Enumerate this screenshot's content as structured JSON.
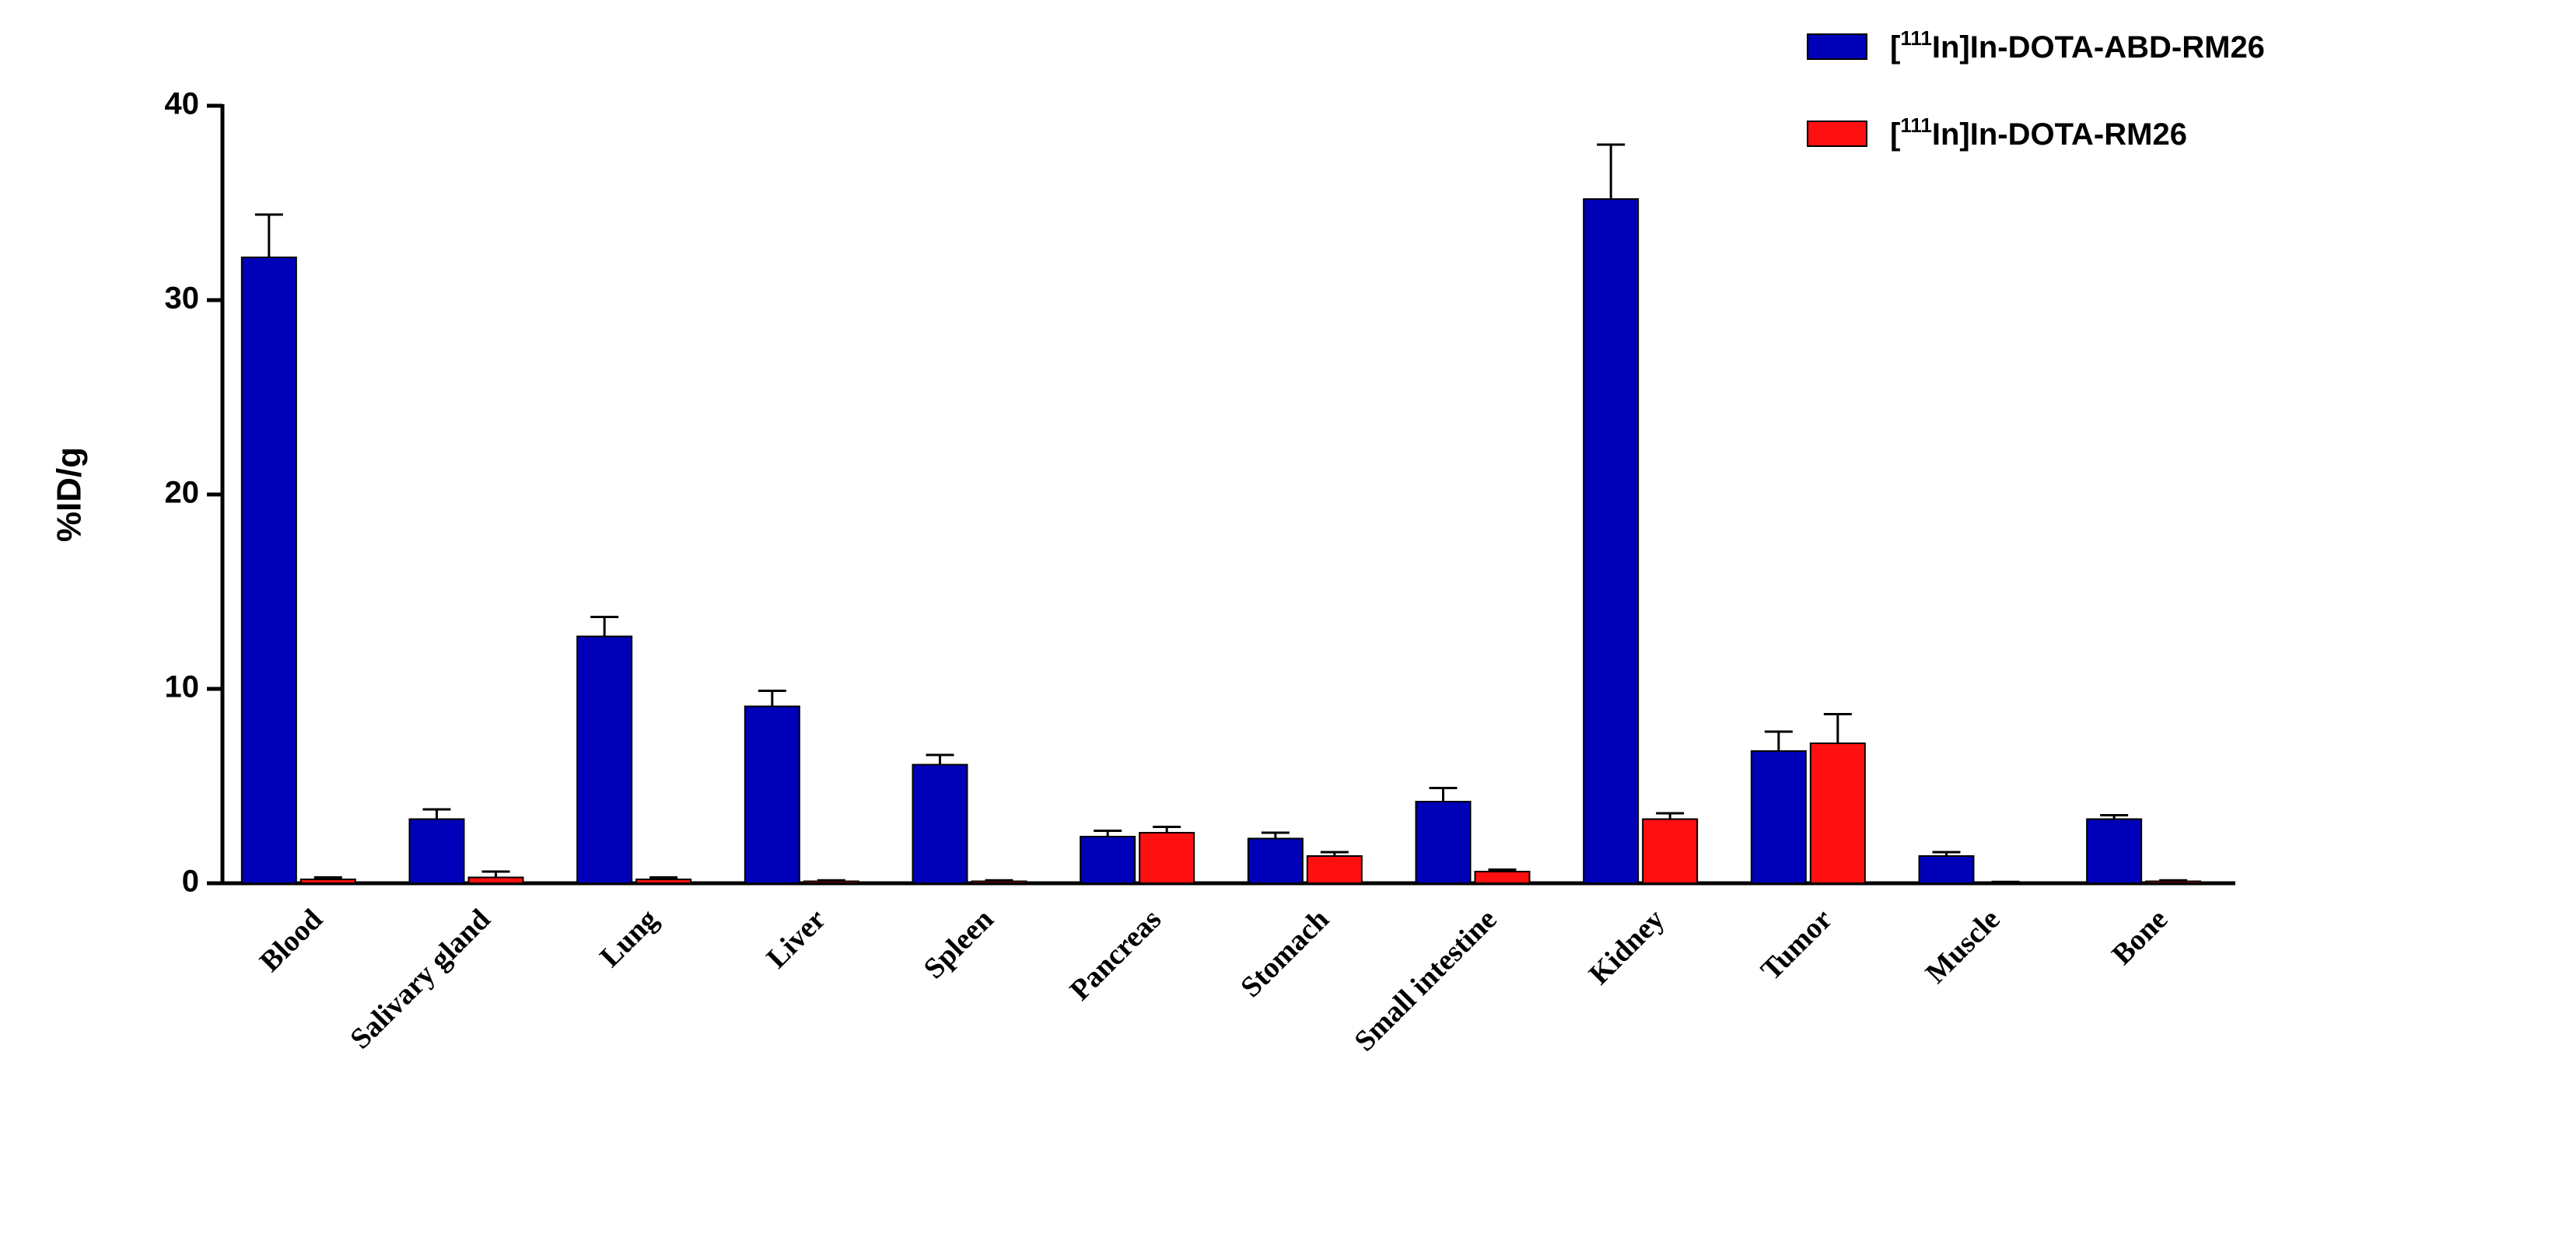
{
  "chart_data": {
    "type": "bar",
    "y_label": "%ID/g",
    "categories": [
      "Blood",
      "Salivary gland",
      "Lung",
      "Liver",
      "Spleen",
      "Pancreas",
      "Stomach",
      "Small intestine",
      "Kidney",
      "Tumor",
      "Muscle",
      "Bone"
    ],
    "series": [
      {
        "name": "[111In]In-DOTA-ABD-RM26",
        "color": "#0000b8",
        "values": [
          32.2,
          3.3,
          12.7,
          9.1,
          6.1,
          2.4,
          2.3,
          4.2,
          35.2,
          6.8,
          1.4,
          3.3
        ],
        "errors": [
          2.2,
          0.5,
          1.0,
          0.8,
          0.5,
          0.3,
          0.3,
          0.7,
          2.8,
          1.0,
          0.2,
          0.2
        ]
      },
      {
        "name": "[111In]In-DOTA-RM26",
        "color": "#ff1010",
        "values": [
          0.2,
          0.3,
          0.2,
          0.1,
          0.1,
          2.6,
          1.4,
          0.6,
          3.3,
          7.2,
          0.05,
          0.1
        ],
        "errors": [
          0.1,
          0.3,
          0.1,
          0.05,
          0.05,
          0.3,
          0.2,
          0.1,
          0.3,
          1.5,
          0.02,
          0.05
        ]
      }
    ],
    "ylim": [
      0,
      40
    ],
    "yticks": [
      0,
      10,
      20,
      30,
      40
    ],
    "grid": false,
    "legend": "top-right"
  }
}
